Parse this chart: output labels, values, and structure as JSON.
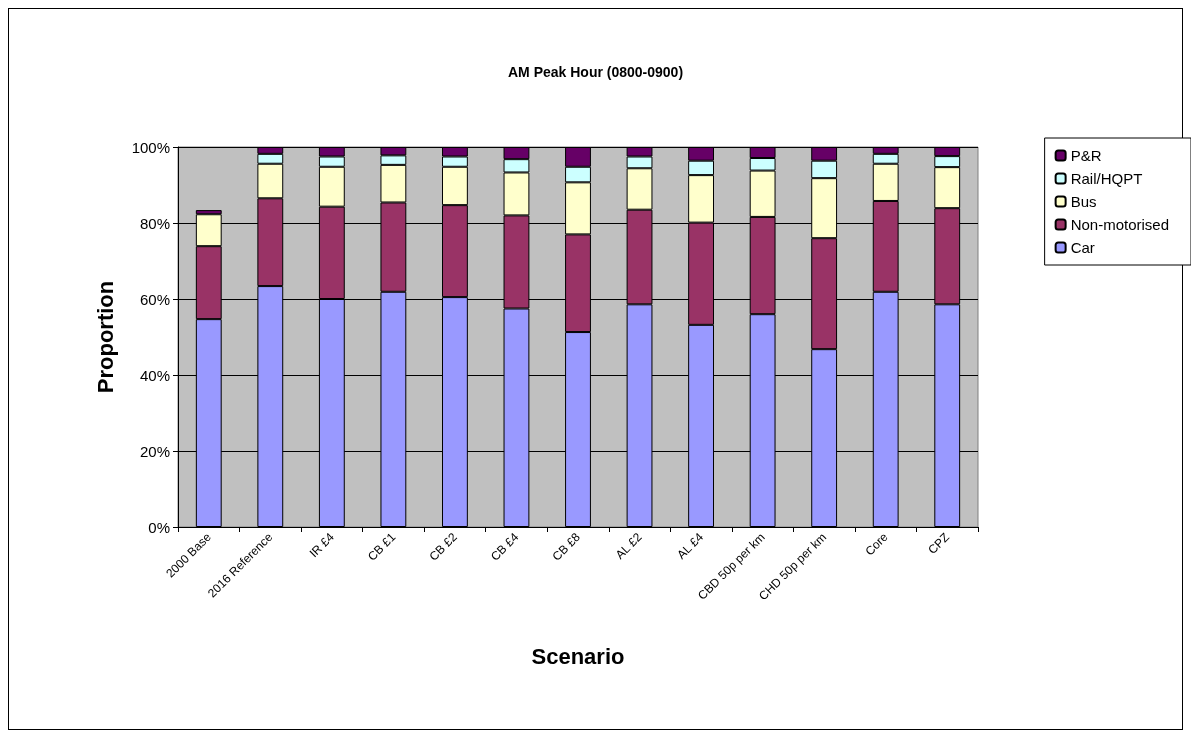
{
  "chart_data": {
    "type": "bar",
    "title": "AM Peak Hour (0800-0900)",
    "xlabel": "Scenario",
    "ylabel": "Proportion",
    "categories": [
      "2000 Base",
      "2016 Reference",
      "IR £4",
      "CB £1",
      "CB £2",
      "CB £4",
      "CB £8",
      "AL £2",
      "AL £4",
      "CBD 50p per km",
      "CHD 50p per km",
      "Core",
      "CPZ"
    ],
    "stacked": true,
    "legend": "right",
    "grid": "y",
    "ylim": [
      0,
      100
    ],
    "yticks": [
      {
        "value": 0,
        "label": "0%"
      },
      {
        "value": 20,
        "label": "20%"
      },
      {
        "value": 40,
        "label": "40%"
      },
      {
        "value": 60,
        "label": "60%"
      },
      {
        "value": 80,
        "label": "80%"
      },
      {
        "value": 100,
        "label": "100%"
      }
    ],
    "series": [
      {
        "name": "Car",
        "color": "#9999ff",
        "values": [
          54.7,
          63.4,
          60.0,
          61.9,
          60.5,
          57.5,
          51.3,
          58.6,
          53.2,
          56.0,
          46.8,
          61.9,
          58.6
        ]
      },
      {
        "name": "Non-motorised",
        "color": "#993366",
        "values": [
          19.2,
          23.1,
          24.3,
          23.5,
          24.2,
          24.5,
          25.7,
          24.9,
          26.9,
          25.6,
          29.2,
          23.9,
          25.3
        ]
      },
      {
        "name": "Bus",
        "color": "#ffffcc",
        "values": [
          8.4,
          9.1,
          10.5,
          9.9,
          10.1,
          11.3,
          13.7,
          10.9,
          12.5,
          12.2,
          15.8,
          9.8,
          10.8
        ]
      },
      {
        "name": "Rail/HQPT",
        "color": "#ccffff",
        "values": [
          null,
          2.6,
          2.7,
          2.5,
          2.7,
          3.5,
          4.1,
          3.1,
          3.8,
          3.3,
          4.6,
          2.6,
          2.9
        ]
      },
      {
        "name": "P&R",
        "color": "#660066",
        "values": [
          1.1,
          1.8,
          2.5,
          2.2,
          2.5,
          3.2,
          5.2,
          2.5,
          3.6,
          2.9,
          3.6,
          1.8,
          2.4
        ]
      }
    ]
  }
}
